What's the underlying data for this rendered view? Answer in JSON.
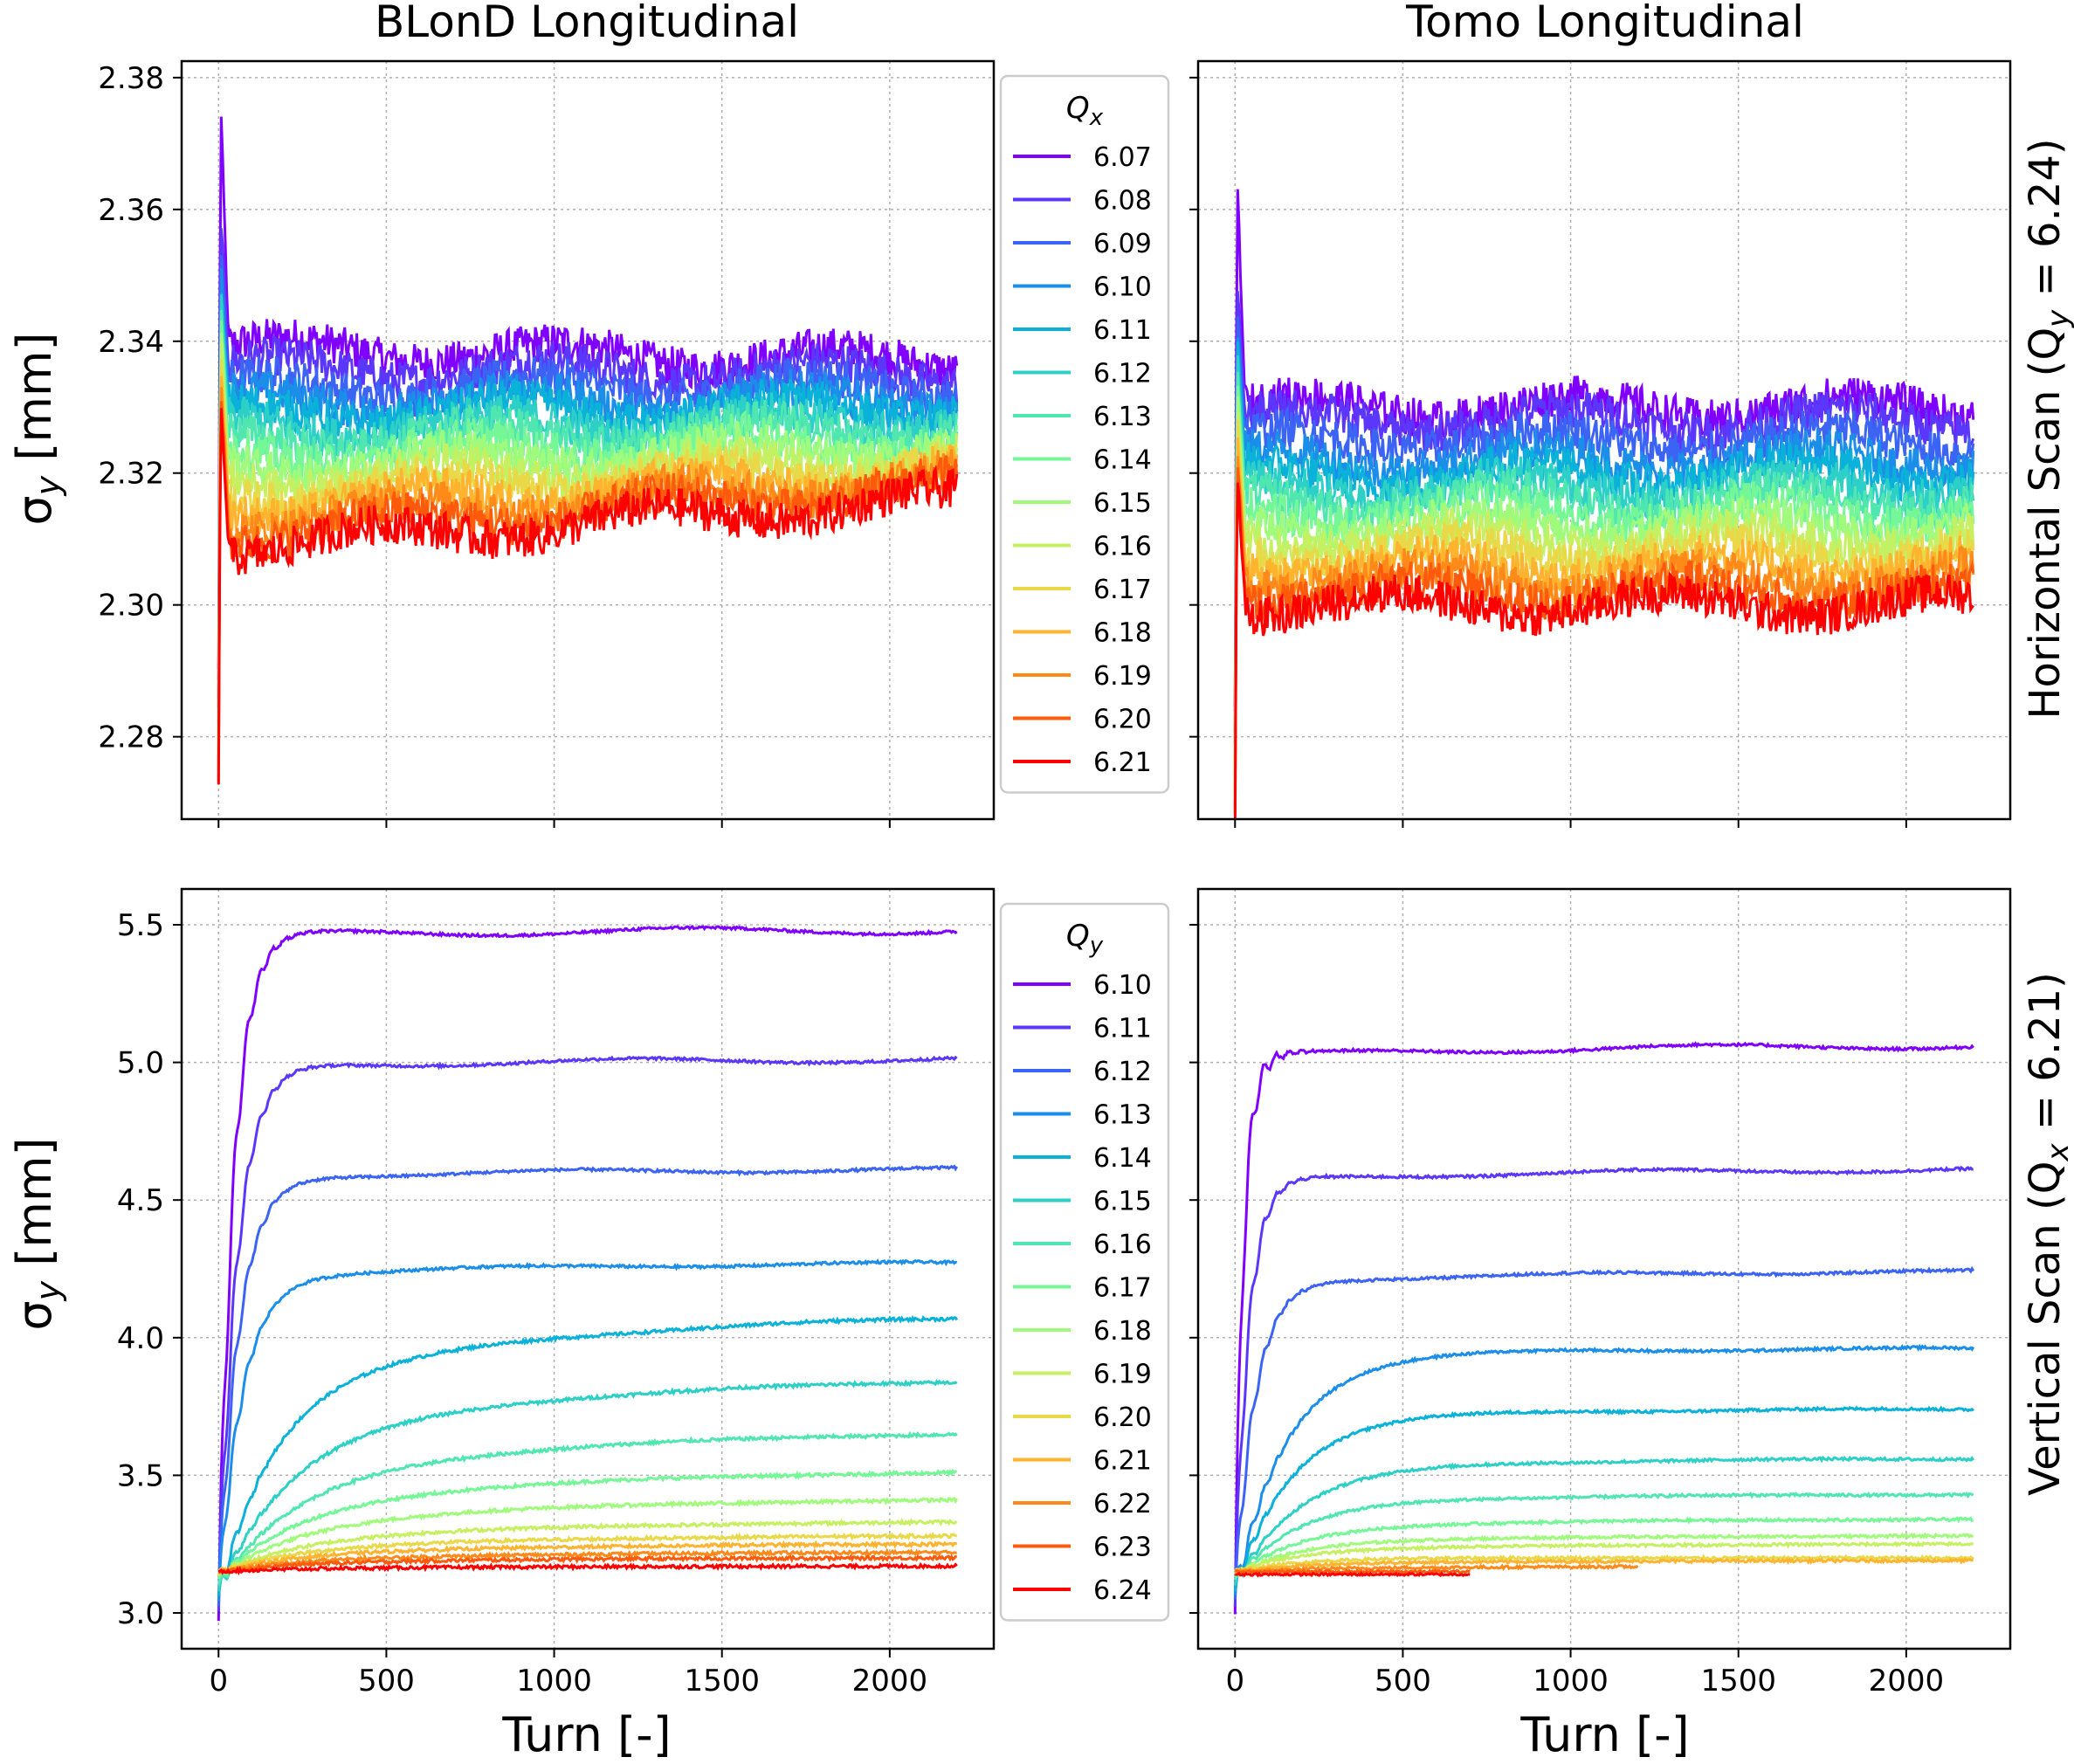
{
  "figure": {
    "column_titles": [
      "BLonD Longitudinal",
      "Tomo Longitudinal"
    ],
    "row_labels": [
      "Horizontal Scan (Q_y = 6.24)",
      "Vertical Scan (Q_x = 6.21)"
    ],
    "ylabel": "σ_y [mm]",
    "xlabel": "Turn [-]"
  },
  "chart_data": [
    {
      "type": "line",
      "panel": "top-left",
      "title": "BLonD Longitudinal",
      "ylabel": "σ_y [mm]",
      "xlim": [
        -110,
        2310
      ],
      "ylim": [
        2.2675,
        2.3825
      ],
      "yticks": [
        2.28,
        2.3,
        2.32,
        2.34,
        2.36,
        2.38
      ],
      "ytick_labels": [
        "2.28",
        "2.30",
        "2.32",
        "2.34",
        "2.36",
        "2.38"
      ],
      "xticks": [
        0,
        500,
        1000,
        1500,
        2000
      ],
      "xtick_labels": [],
      "grid": true,
      "legend": {
        "title": "Q_x",
        "placement": "outside-right"
      },
      "x_end": 2200,
      "series": [
        {
          "name": "6.07",
          "start": 2.29,
          "peak": 2.377,
          "plateau": 2.339,
          "end": 2.337,
          "noise": 0.003
        },
        {
          "name": "6.08",
          "start": 2.288,
          "peak": 2.36,
          "plateau": 2.336,
          "end": 2.335,
          "noise": 0.003
        },
        {
          "name": "6.09",
          "start": 2.286,
          "peak": 2.355,
          "plateau": 2.333,
          "end": 2.333,
          "noise": 0.003
        },
        {
          "name": "6.10",
          "start": 2.285,
          "peak": 2.352,
          "plateau": 2.331,
          "end": 2.331,
          "noise": 0.003
        },
        {
          "name": "6.11",
          "start": 2.284,
          "peak": 2.35,
          "plateau": 2.329,
          "end": 2.33,
          "noise": 0.003
        },
        {
          "name": "6.12",
          "start": 2.283,
          "peak": 2.348,
          "plateau": 2.327,
          "end": 2.328,
          "noise": 0.003
        },
        {
          "name": "6.13",
          "start": 2.282,
          "peak": 2.346,
          "plateau": 2.325,
          "end": 2.327,
          "noise": 0.003
        },
        {
          "name": "6.14",
          "start": 2.281,
          "peak": 2.345,
          "plateau": 2.323,
          "end": 2.325,
          "noise": 0.003
        },
        {
          "name": "6.15",
          "start": 2.28,
          "peak": 2.343,
          "plateau": 2.321,
          "end": 2.324,
          "noise": 0.003
        },
        {
          "name": "6.16",
          "start": 2.279,
          "peak": 2.341,
          "plateau": 2.319,
          "end": 2.322,
          "noise": 0.003
        },
        {
          "name": "6.17",
          "start": 2.278,
          "peak": 2.339,
          "plateau": 2.317,
          "end": 2.321,
          "noise": 0.003
        },
        {
          "name": "6.18",
          "start": 2.277,
          "peak": 2.337,
          "plateau": 2.315,
          "end": 2.32,
          "noise": 0.003
        },
        {
          "name": "6.19",
          "start": 2.275,
          "peak": 2.335,
          "plateau": 2.313,
          "end": 2.319,
          "noise": 0.003
        },
        {
          "name": "6.20",
          "start": 2.274,
          "peak": 2.333,
          "plateau": 2.311,
          "end": 2.318,
          "noise": 0.003
        },
        {
          "name": "6.21",
          "start": 2.272,
          "peak": 2.331,
          "plateau": 2.309,
          "end": 2.316,
          "noise": 0.003
        }
      ]
    },
    {
      "type": "line",
      "panel": "top-right",
      "title": "Tomo Longitudinal",
      "row_label": "Horizontal Scan (Q_y = 6.24)",
      "xlim": [
        -110,
        2310
      ],
      "ylim": [
        2.2675,
        2.3825
      ],
      "yticks": [
        2.28,
        2.3,
        2.32,
        2.34,
        2.36,
        2.38
      ],
      "ytick_labels": [],
      "xticks": [
        0,
        500,
        1000,
        1500,
        2000
      ],
      "xtick_labels": [],
      "grid": true,
      "x_end": 2200,
      "series": [
        {
          "name": "6.07",
          "start": 2.285,
          "peak": 2.366,
          "plateau": 2.33,
          "end": 2.33,
          "noise": 0.003
        },
        {
          "name": "6.08",
          "start": 2.283,
          "peak": 2.35,
          "plateau": 2.328,
          "end": 2.328,
          "noise": 0.003
        },
        {
          "name": "6.09",
          "start": 2.281,
          "peak": 2.346,
          "plateau": 2.325,
          "end": 2.325,
          "noise": 0.003
        },
        {
          "name": "6.10",
          "start": 2.28,
          "peak": 2.343,
          "plateau": 2.322,
          "end": 2.322,
          "noise": 0.003
        },
        {
          "name": "6.11",
          "start": 2.279,
          "peak": 2.341,
          "plateau": 2.32,
          "end": 2.32,
          "noise": 0.003
        },
        {
          "name": "6.12",
          "start": 2.278,
          "peak": 2.339,
          "plateau": 2.318,
          "end": 2.318,
          "noise": 0.003
        },
        {
          "name": "6.13",
          "start": 2.277,
          "peak": 2.337,
          "plateau": 2.316,
          "end": 2.316,
          "noise": 0.003
        },
        {
          "name": "6.14",
          "start": 2.276,
          "peak": 2.335,
          "plateau": 2.314,
          "end": 2.314,
          "noise": 0.003
        },
        {
          "name": "6.15",
          "start": 2.275,
          "peak": 2.333,
          "plateau": 2.312,
          "end": 2.312,
          "noise": 0.003
        },
        {
          "name": "6.16",
          "start": 2.274,
          "peak": 2.331,
          "plateau": 2.31,
          "end": 2.31,
          "noise": 0.003
        },
        {
          "name": "6.17",
          "start": 2.273,
          "peak": 2.329,
          "plateau": 2.308,
          "end": 2.308,
          "noise": 0.003
        },
        {
          "name": "6.18",
          "start": 2.272,
          "peak": 2.327,
          "plateau": 2.306,
          "end": 2.306,
          "noise": 0.003
        },
        {
          "name": "6.19",
          "start": 2.27,
          "peak": 2.325,
          "plateau": 2.304,
          "end": 2.304,
          "noise": 0.003
        },
        {
          "name": "6.20",
          "start": 2.268,
          "peak": 2.323,
          "plateau": 2.302,
          "end": 2.302,
          "noise": 0.003
        },
        {
          "name": "6.21",
          "start": 2.266,
          "peak": 2.321,
          "plateau": 2.3,
          "end": 2.3,
          "noise": 0.003
        }
      ]
    },
    {
      "type": "line",
      "panel": "bottom-left",
      "ylabel": "σ_y [mm]",
      "xlabel": "Turn [-]",
      "xlim": [
        -110,
        2310
      ],
      "ylim": [
        2.87,
        5.63
      ],
      "yticks": [
        3.0,
        3.5,
        4.0,
        4.5,
        5.0,
        5.5
      ],
      "ytick_labels": [
        "3.0",
        "3.5",
        "4.0",
        "4.5",
        "5.0",
        "5.5"
      ],
      "xticks": [
        0,
        500,
        1000,
        1500,
        2000
      ],
      "xtick_labels": [
        "0",
        "500",
        "1000",
        "1500",
        "2000"
      ],
      "grid": true,
      "legend": {
        "title": "Q_y",
        "placement": "outside-right"
      },
      "x_end": 2200,
      "series": [
        {
          "name": "6.10",
          "start": 2.97,
          "plateau": 5.46,
          "end": 5.48,
          "tau": 45,
          "noise": 0.005
        },
        {
          "name": "6.11",
          "start": 3.0,
          "plateau": 4.98,
          "end": 5.01,
          "tau": 55,
          "noise": 0.005
        },
        {
          "name": "6.12",
          "start": 3.02,
          "plateau": 4.58,
          "end": 4.61,
          "tau": 60,
          "noise": 0.005
        },
        {
          "name": "6.13",
          "start": 3.04,
          "plateau": 4.22,
          "end": 4.27,
          "tau": 70,
          "noise": 0.005
        },
        {
          "name": "6.14",
          "start": 3.06,
          "plateau": 3.8,
          "end": 4.07,
          "tau": 160,
          "noise": 0.006
        },
        {
          "name": "6.15",
          "start": 3.08,
          "plateau": 3.6,
          "end": 3.84,
          "tau": 200,
          "noise": 0.006
        },
        {
          "name": "6.16",
          "start": 3.1,
          "plateau": 3.46,
          "end": 3.65,
          "tau": 220,
          "noise": 0.006
        },
        {
          "name": "6.17",
          "start": 3.12,
          "plateau": 3.37,
          "end": 3.51,
          "tau": 220,
          "noise": 0.006
        },
        {
          "name": "6.18",
          "start": 3.13,
          "plateau": 3.31,
          "end": 3.41,
          "tau": 220,
          "noise": 0.006
        },
        {
          "name": "6.19",
          "start": 3.14,
          "plateau": 3.26,
          "end": 3.33,
          "tau": 220,
          "noise": 0.006
        },
        {
          "name": "6.20",
          "start": 3.15,
          "plateau": 3.23,
          "end": 3.28,
          "tau": 220,
          "noise": 0.006
        },
        {
          "name": "6.21",
          "start": 3.15,
          "plateau": 3.21,
          "end": 3.25,
          "tau": 220,
          "noise": 0.006
        },
        {
          "name": "6.22",
          "start": 3.15,
          "plateau": 3.19,
          "end": 3.22,
          "tau": 220,
          "noise": 0.006
        },
        {
          "name": "6.23",
          "start": 3.15,
          "plateau": 3.18,
          "end": 3.2,
          "tau": 220,
          "noise": 0.006
        },
        {
          "name": "6.24",
          "start": 3.15,
          "plateau": 3.16,
          "end": 3.17,
          "tau": 220,
          "noise": 0.006
        }
      ]
    },
    {
      "type": "line",
      "panel": "bottom-right",
      "xlabel": "Turn [-]",
      "row_label": "Vertical Scan (Q_x = 6.21)",
      "xlim": [
        -110,
        2310
      ],
      "ylim": [
        2.87,
        5.63
      ],
      "yticks": [
        3.0,
        3.5,
        4.0,
        4.5,
        5.0,
        5.5
      ],
      "ytick_labels": [],
      "xticks": [
        0,
        500,
        1000,
        1500,
        2000
      ],
      "xtick_labels": [
        "0",
        "500",
        "1000",
        "1500",
        "2000"
      ],
      "grid": true,
      "x_end": 2200,
      "series": [
        {
          "name": "6.10",
          "start": 3.0,
          "plateau": 5.02,
          "end": 5.06,
          "tau": 25,
          "noise": 0.005
        },
        {
          "name": "6.11",
          "start": 3.02,
          "plateau": 4.57,
          "end": 4.61,
          "tau": 40,
          "noise": 0.005
        },
        {
          "name": "6.12",
          "start": 3.04,
          "plateau": 4.2,
          "end": 4.24,
          "tau": 60,
          "noise": 0.005
        },
        {
          "name": "6.13",
          "start": 3.06,
          "plateau": 3.93,
          "end": 3.96,
          "tau": 150,
          "noise": 0.005
        },
        {
          "name": "6.14",
          "start": 3.08,
          "plateau": 3.71,
          "end": 3.74,
          "tau": 160,
          "noise": 0.005
        },
        {
          "name": "6.15",
          "start": 3.1,
          "plateau": 3.52,
          "end": 3.56,
          "tau": 180,
          "noise": 0.005
        },
        {
          "name": "6.16",
          "start": 3.12,
          "plateau": 3.4,
          "end": 3.43,
          "tau": 180,
          "noise": 0.005
        },
        {
          "name": "6.17",
          "start": 3.13,
          "plateau": 3.31,
          "end": 3.34,
          "tau": 180,
          "noise": 0.005
        },
        {
          "name": "6.18",
          "start": 3.14,
          "plateau": 3.26,
          "end": 3.28,
          "tau": 180,
          "noise": 0.005
        },
        {
          "name": "6.19",
          "start": 3.15,
          "plateau": 3.23,
          "end": 3.25,
          "tau": 180,
          "noise": 0.005
        },
        {
          "name": "6.20",
          "start": 3.15,
          "plateau": 3.2,
          "end": 3.2,
          "tau": 180,
          "noise": 0.005
        },
        {
          "name": "6.21",
          "start": 3.15,
          "plateau": 3.18,
          "end": 3.19,
          "tau": 180,
          "noise": 0.005
        },
        {
          "name": "6.22",
          "start": 3.15,
          "plateau": 3.16,
          "end": 3.17,
          "tau": 180,
          "noise": 0.005,
          "x_stop": 1200
        },
        {
          "name": "6.23",
          "start": 3.15,
          "plateau": 3.15,
          "end": 3.15,
          "tau": 180,
          "noise": 0.004,
          "x_stop": 700
        },
        {
          "name": "6.24",
          "start": 3.14,
          "plateau": 3.14,
          "end": 3.14,
          "tau": 180,
          "noise": 0.004,
          "x_stop": 700
        }
      ]
    }
  ],
  "colors": {
    "series": [
      "#8000ff",
      "#5b37fc",
      "#3b64f5",
      "#1a8ee9",
      "#0ab1d9",
      "#2dd0c6",
      "#50e6b0",
      "#76f797",
      "#a0fb7d",
      "#c6f062",
      "#e9d847",
      "#ffb32e",
      "#ff8a1a",
      "#ff5a0c",
      "#ff0000"
    ],
    "grid": "#b0b0b0",
    "axis": "#000000",
    "legend_border": "#cccccc"
  }
}
